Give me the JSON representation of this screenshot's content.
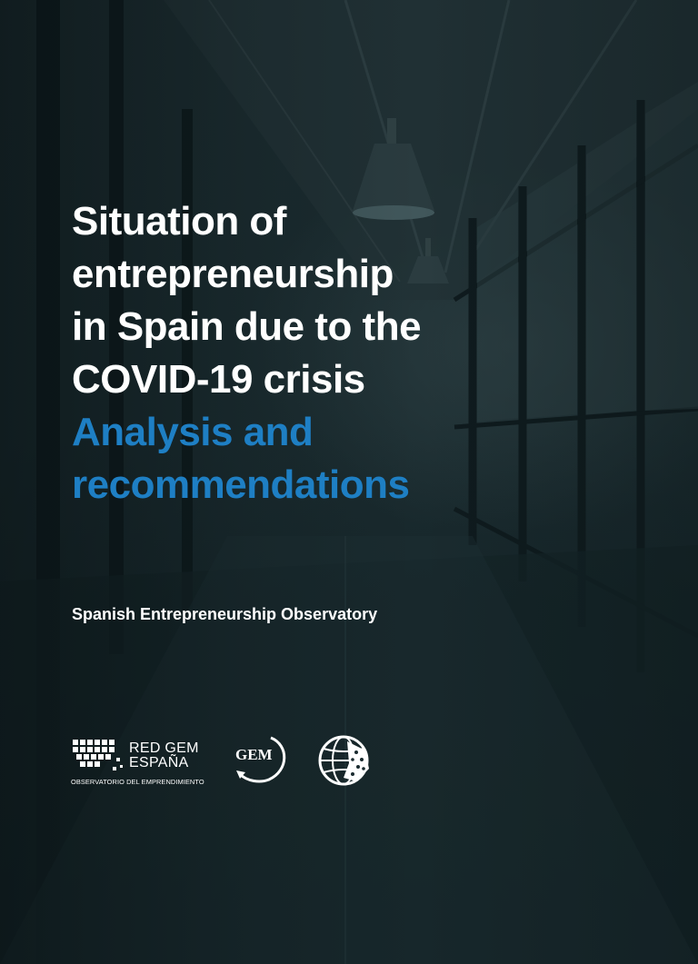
{
  "document": {
    "title_lines": [
      "Situation of",
      "entrepreneurship",
      "in Spain due to the",
      "COVID-19 crisis"
    ],
    "highlight_lines": [
      "Analysis and",
      "recommendations"
    ],
    "author": "Spanish Entrepreneurship Observatory"
  },
  "logos": {
    "red_gem_line1": "RED GEM",
    "red_gem_line2": "ESPAÑA",
    "red_gem_tagline": "OBSERVATORIO DEL EMPRENDIMIENTO",
    "gem_mark": "GEM"
  },
  "colors": {
    "background": "#1a2b2f",
    "title": "#ffffff",
    "highlight": "#1e7fc4"
  }
}
